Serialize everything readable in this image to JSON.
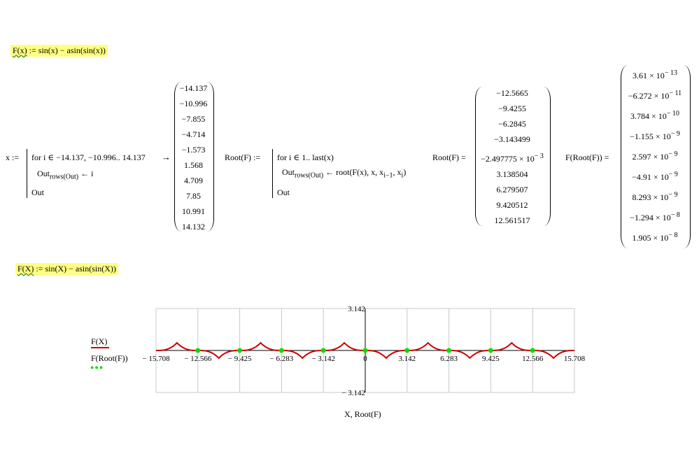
{
  "definitions": {
    "def1": {
      "name": "F(x)",
      "body": ":= sin(x) − asin(sin(x))"
    },
    "def2": {
      "name": "F(X)",
      "body": ":= sin(X) − asin(sin(X))"
    }
  },
  "program_x": {
    "lhs": "x :=",
    "line1": "for  i ∈ −14.137, −10.996.. 14.137",
    "line2_base": "Out",
    "line2_sub": "rows(Out)",
    "line2_assign": "← i",
    "line3": "Out",
    "arrow": "→",
    "result": [
      "−14.137",
      "−10.996",
      "−7.855",
      "−4.714",
      "−1.573",
      "1.568",
      "4.709",
      "7.85",
      "10.991",
      "14.132"
    ]
  },
  "program_root": {
    "lhs": "Root(F) :=",
    "line1": "for  i ∈ 1.. last(x)",
    "line2_base": "Out",
    "line2_sub": "rows(Out)",
    "line2_assign": "← root(F(x), x, x",
    "line2_sub2": "i−1",
    "line2_tail": ", x",
    "line2_sub3": "i",
    "line2_close": ")",
    "line3": "Out"
  },
  "root_eval": {
    "lhs": "Root(F) =",
    "values": [
      "−12.5665",
      "−9.4255",
      "−6.2845",
      "−3.143499",
      "−2.497775 × 10",
      "3.138504",
      "6.279507",
      "9.420512",
      "12.561517"
    ],
    "exp5": "− 3"
  },
  "f_root_eval": {
    "lhs": "F(Root(F)) =",
    "mant": [
      "3.61 × 10",
      "−6.272 × 10",
      "3.784 × 10",
      "−1.155 × 10",
      "2.597 × 10",
      "−4.91 × 10",
      "8.293 × 10",
      "−1.294 × 10",
      "1.905 × 10"
    ],
    "exps": [
      "− 13",
      "− 11",
      "− 10",
      "− 9",
      "− 9",
      "− 9",
      "− 9",
      "− 8",
      "− 8"
    ]
  },
  "plot": {
    "legend": {
      "series1": "F(X)",
      "series2": "F(Root(F))"
    },
    "xlabel": "X, Root(F)",
    "ytick_top": "3.142",
    "ytick_bottom": "− 3.142",
    "xticks": [
      "− 15.708",
      "− 12.566",
      "− 9.425",
      "− 6.283",
      "− 3.142",
      "0",
      "3.142",
      "6.283",
      "9.425",
      "12.566",
      "15.708"
    ],
    "colors": {
      "line": "#cc0000",
      "points": "#00e000",
      "grid": "#c8c8c8"
    }
  },
  "chart_data": {
    "type": "scatter",
    "title": "",
    "xlabel": "X, Root(F)",
    "ylabel": "",
    "xlim": [
      -15.708,
      15.708
    ],
    "ylim": [
      -3.142,
      3.142
    ],
    "grid": true,
    "series": [
      {
        "name": "F(X)",
        "kind": "line",
        "color": "#cc0000",
        "function": "sin(X) − asin(sin(X))"
      },
      {
        "name": "F(Root(F))",
        "kind": "points",
        "color": "#00e000",
        "x": [
          -12.5665,
          -9.4255,
          -6.2845,
          -3.143499,
          -0.002497775,
          3.138504,
          6.279507,
          9.420512,
          12.561517
        ],
        "y": [
          0,
          0,
          0,
          0,
          0,
          0,
          0,
          0,
          0
        ]
      }
    ]
  }
}
